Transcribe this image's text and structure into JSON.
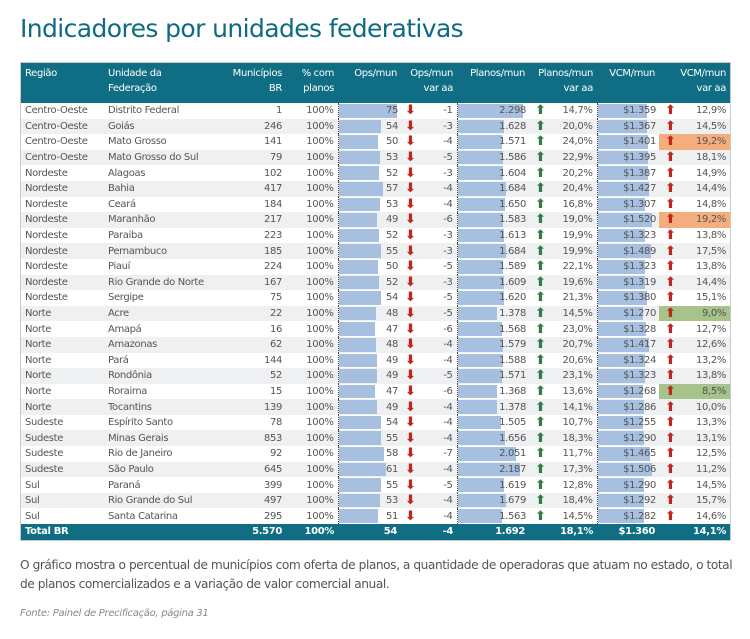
{
  "title": "Indicadores por unidades federativas",
  "colors": {
    "header": "#0f6e84",
    "bar": "#a8c0df",
    "down_arrow": "#c0261b",
    "up_green": "#2e7d46",
    "up_red": "#c0261b",
    "highlight_orange": "#f4ad7c",
    "highlight_green": "#a5c38a"
  },
  "table": {
    "headers": [
      {
        "line1": "Região",
        "line2": ""
      },
      {
        "line1": "Unidade da",
        "line2": "Federação"
      },
      {
        "line1": "Municípios",
        "line2": "BR"
      },
      {
        "line1": "% com",
        "line2": "planos"
      },
      {
        "line1": "Ops/mun",
        "line2": ""
      },
      {
        "line1": "Ops/mun",
        "line2": "var aa"
      },
      {
        "line1": "Planos/mun",
        "line2": ""
      },
      {
        "line1": "Planos/mun",
        "line2": "var aa"
      },
      {
        "line1": "VCM/mun",
        "line2": ""
      },
      {
        "line1": "VCM/mun",
        "line2": "var aa"
      }
    ],
    "icons": {
      "ops_var": "arrow-down-icon",
      "planos_var": "arrow-up-icon",
      "vcm_var": "arrow-up-icon"
    },
    "rows": [
      {
        "regiao": "Centro-Oeste",
        "uf": "Distrito Federal",
        "municipios": "1",
        "pct": "100%",
        "ops": "75",
        "ops_var": "-1",
        "planos": "2.298",
        "planos_var": "14,7%",
        "vcm": "$1.359",
        "vcm_var": "12,9%",
        "highlight": ""
      },
      {
        "regiao": "Centro-Oeste",
        "uf": "Goiás",
        "municipios": "246",
        "pct": "100%",
        "ops": "54",
        "ops_var": "-3",
        "planos": "1.628",
        "planos_var": "20,0%",
        "vcm": "$1.367",
        "vcm_var": "14,5%",
        "highlight": ""
      },
      {
        "regiao": "Centro-Oeste",
        "uf": "Mato Grosso",
        "municipios": "141",
        "pct": "100%",
        "ops": "50",
        "ops_var": "-4",
        "planos": "1.571",
        "planos_var": "24,0%",
        "vcm": "$1.401",
        "vcm_var": "19,2%",
        "highlight": "orange"
      },
      {
        "regiao": "Centro-Oeste",
        "uf": "Mato Grosso do Sul",
        "municipios": "79",
        "pct": "100%",
        "ops": "53",
        "ops_var": "-5",
        "planos": "1.586",
        "planos_var": "22,9%",
        "vcm": "$1.395",
        "vcm_var": "18,1%",
        "highlight": ""
      },
      {
        "regiao": "Nordeste",
        "uf": "Alagoas",
        "municipios": "102",
        "pct": "100%",
        "ops": "52",
        "ops_var": "-3",
        "planos": "1.604",
        "planos_var": "20,2%",
        "vcm": "$1.387",
        "vcm_var": "14,9%",
        "highlight": ""
      },
      {
        "regiao": "Nordeste",
        "uf": "Bahia",
        "municipios": "417",
        "pct": "100%",
        "ops": "57",
        "ops_var": "-4",
        "planos": "1.684",
        "planos_var": "20,4%",
        "vcm": "$1.427",
        "vcm_var": "14,4%",
        "highlight": ""
      },
      {
        "regiao": "Nordeste",
        "uf": "Ceará",
        "municipios": "184",
        "pct": "100%",
        "ops": "53",
        "ops_var": "-4",
        "planos": "1.650",
        "planos_var": "16,8%",
        "vcm": "$1.307",
        "vcm_var": "14,8%",
        "highlight": ""
      },
      {
        "regiao": "Nordeste",
        "uf": "Maranhão",
        "municipios": "217",
        "pct": "100%",
        "ops": "49",
        "ops_var": "-6",
        "planos": "1.583",
        "planos_var": "19,0%",
        "vcm": "$1.520",
        "vcm_var": "19,2%",
        "highlight": "orange"
      },
      {
        "regiao": "Nordeste",
        "uf": "Paraiba",
        "municipios": "223",
        "pct": "100%",
        "ops": "52",
        "ops_var": "-3",
        "planos": "1.613",
        "planos_var": "19,9%",
        "vcm": "$1.323",
        "vcm_var": "13,8%",
        "highlight": ""
      },
      {
        "regiao": "Nordeste",
        "uf": "Pernambuco",
        "municipios": "185",
        "pct": "100%",
        "ops": "55",
        "ops_var": "-3",
        "planos": "1.684",
        "planos_var": "19,9%",
        "vcm": "$1.489",
        "vcm_var": "17,5%",
        "highlight": ""
      },
      {
        "regiao": "Nordeste",
        "uf": "Piauí",
        "municipios": "224",
        "pct": "100%",
        "ops": "50",
        "ops_var": "-5",
        "planos": "1.589",
        "planos_var": "22,1%",
        "vcm": "$1.323",
        "vcm_var": "13,8%",
        "highlight": ""
      },
      {
        "regiao": "Nordeste",
        "uf": "Rio Grande do Norte",
        "municipios": "167",
        "pct": "100%",
        "ops": "52",
        "ops_var": "-3",
        "planos": "1.609",
        "planos_var": "19,6%",
        "vcm": "$1.319",
        "vcm_var": "14,4%",
        "highlight": ""
      },
      {
        "regiao": "Nordeste",
        "uf": "Sergipe",
        "municipios": "75",
        "pct": "100%",
        "ops": "54",
        "ops_var": "-5",
        "planos": "1.620",
        "planos_var": "21,3%",
        "vcm": "$1.380",
        "vcm_var": "15,1%",
        "highlight": ""
      },
      {
        "regiao": "Norte",
        "uf": "Acre",
        "municipios": "22",
        "pct": "100%",
        "ops": "48",
        "ops_var": "-5",
        "planos": "1.378",
        "planos_var": "14,5%",
        "vcm": "$1.270",
        "vcm_var": "9,0%",
        "highlight": "green"
      },
      {
        "regiao": "Norte",
        "uf": "Amapá",
        "municipios": "16",
        "pct": "100%",
        "ops": "47",
        "ops_var": "-6",
        "planos": "1.568",
        "planos_var": "23,0%",
        "vcm": "$1.328",
        "vcm_var": "12,7%",
        "highlight": ""
      },
      {
        "regiao": "Norte",
        "uf": "Amazonas",
        "municipios": "62",
        "pct": "100%",
        "ops": "48",
        "ops_var": "-4",
        "planos": "1.579",
        "planos_var": "20,7%",
        "vcm": "$1.417",
        "vcm_var": "12,6%",
        "highlight": ""
      },
      {
        "regiao": "Norte",
        "uf": "Pará",
        "municipios": "144",
        "pct": "100%",
        "ops": "49",
        "ops_var": "-4",
        "planos": "1.588",
        "planos_var": "20,6%",
        "vcm": "$1.324",
        "vcm_var": "13,2%",
        "highlight": ""
      },
      {
        "regiao": "Norte",
        "uf": "Rondônia",
        "municipios": "52",
        "pct": "100%",
        "ops": "49",
        "ops_var": "-5",
        "planos": "1.571",
        "planos_var": "23,1%",
        "vcm": "$1.323",
        "vcm_var": "13,8%",
        "highlight": ""
      },
      {
        "regiao": "Norte",
        "uf": "Roraima",
        "municipios": "15",
        "pct": "100%",
        "ops": "47",
        "ops_var": "-6",
        "planos": "1.368",
        "planos_var": "13,6%",
        "vcm": "$1.268",
        "vcm_var": "8,5%",
        "highlight": "green"
      },
      {
        "regiao": "Norte",
        "uf": "Tocantins",
        "municipios": "139",
        "pct": "100%",
        "ops": "49",
        "ops_var": "-4",
        "planos": "1.378",
        "planos_var": "14,1%",
        "vcm": "$1.286",
        "vcm_var": "10,0%",
        "highlight": ""
      },
      {
        "regiao": "Sudeste",
        "uf": "Espírito Santo",
        "municipios": "78",
        "pct": "100%",
        "ops": "54",
        "ops_var": "-4",
        "planos": "1.505",
        "planos_var": "10,7%",
        "vcm": "$1.255",
        "vcm_var": "13,3%",
        "highlight": ""
      },
      {
        "regiao": "Sudeste",
        "uf": "Minas Gerais",
        "municipios": "853",
        "pct": "100%",
        "ops": "55",
        "ops_var": "-4",
        "planos": "1.656",
        "planos_var": "18,3%",
        "vcm": "$1.290",
        "vcm_var": "13,1%",
        "highlight": ""
      },
      {
        "regiao": "Sudeste",
        "uf": "Rio de Janeiro",
        "municipios": "92",
        "pct": "100%",
        "ops": "58",
        "ops_var": "-7",
        "planos": "2.051",
        "planos_var": "11,7%",
        "vcm": "$1.465",
        "vcm_var": "12,5%",
        "highlight": ""
      },
      {
        "regiao": "Sudeste",
        "uf": "São Paulo",
        "municipios": "645",
        "pct": "100%",
        "ops": "61",
        "ops_var": "-4",
        "planos": "2.187",
        "planos_var": "17,3%",
        "vcm": "$1.506",
        "vcm_var": "11,2%",
        "highlight": ""
      },
      {
        "regiao": "Sul",
        "uf": "Paraná",
        "municipios": "399",
        "pct": "100%",
        "ops": "55",
        "ops_var": "-5",
        "planos": "1.619",
        "planos_var": "12,8%",
        "vcm": "$1.290",
        "vcm_var": "14,5%",
        "highlight": ""
      },
      {
        "regiao": "Sul",
        "uf": "Rio Grande do Sul",
        "municipios": "497",
        "pct": "100%",
        "ops": "53",
        "ops_var": "-4",
        "planos": "1.679",
        "planos_var": "18,4%",
        "vcm": "$1.292",
        "vcm_var": "15,7%",
        "highlight": ""
      },
      {
        "regiao": "Sul",
        "uf": "Santa Catarina",
        "municipios": "295",
        "pct": "100%",
        "ops": "51",
        "ops_var": "-4",
        "planos": "1.563",
        "planos_var": "14,5%",
        "vcm": "$1.282",
        "vcm_var": "14,6%",
        "highlight": ""
      }
    ],
    "total": {
      "label": "Total BR",
      "municipios": "5.570",
      "pct": "100%",
      "ops": "54",
      "ops_var": "-4",
      "planos": "1.692",
      "planos_var": "18,1%",
      "vcm": "$1.360",
      "vcm_var": "14,1%"
    }
  },
  "caption": "O gráfico mostra o percentual de municípios com oferta de planos, a quantidade de operadoras que atuam no estado, o total de planos comercializados e a variação de valor comercial anual.",
  "source": "Fonte: Painel de Precificação, página 31"
}
